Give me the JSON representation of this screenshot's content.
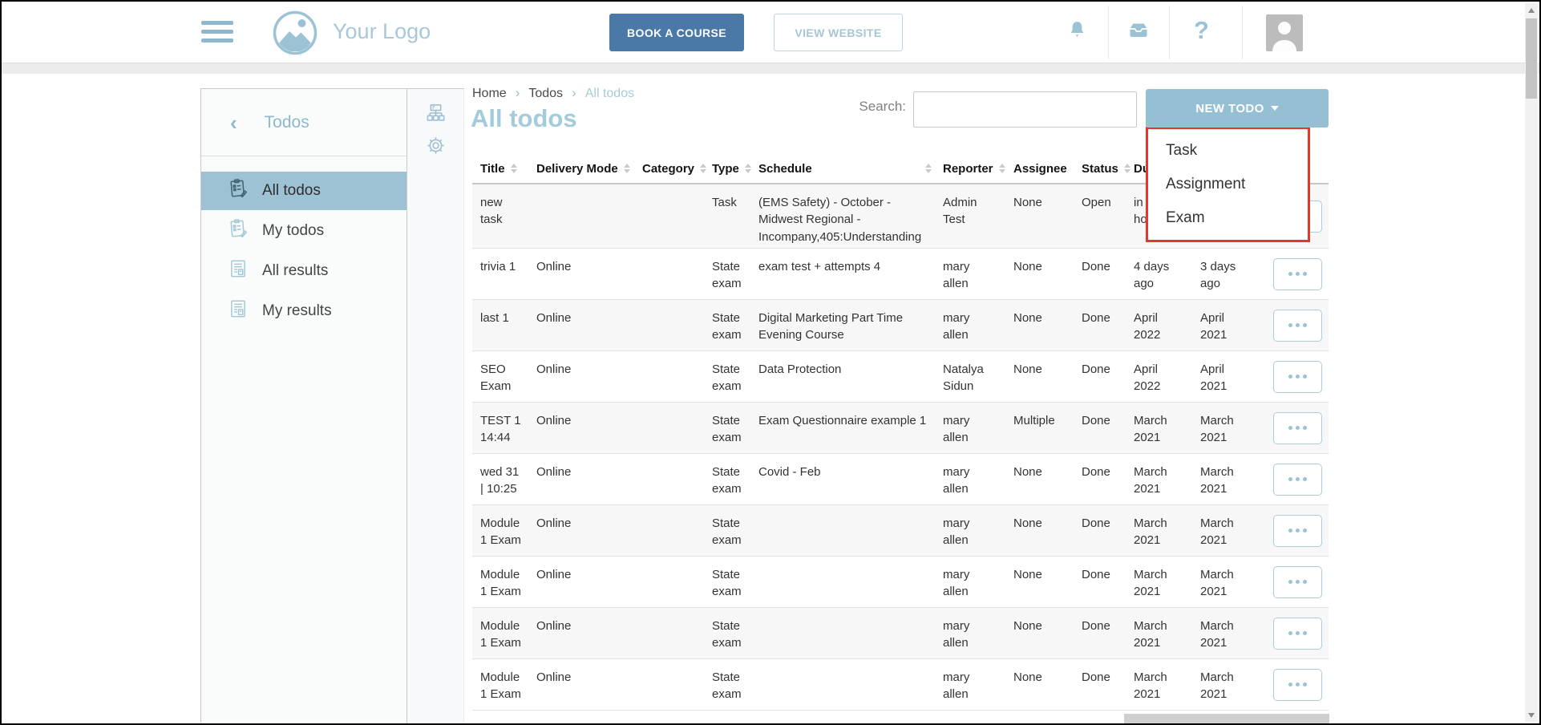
{
  "header": {
    "logo_text": "Your Logo",
    "book_course_label": "BOOK A COURSE",
    "view_website_label": "VIEW WEBSITE"
  },
  "sidebar": {
    "back_chevron": "‹",
    "title": "Todos",
    "items": [
      {
        "label": "All todos",
        "icon": "todo-list-icon",
        "selected": true
      },
      {
        "label": "My todos",
        "icon": "todo-list-icon",
        "selected": false
      },
      {
        "label": "All results",
        "icon": "results-icon",
        "selected": false
      },
      {
        "label": "My results",
        "icon": "results-icon",
        "selected": false
      }
    ]
  },
  "breadcrumb": [
    "Home",
    "Todos",
    "All todos"
  ],
  "page_title": "All todos",
  "search": {
    "label": "Search:",
    "value": ""
  },
  "new_todo": {
    "label": "NEW TODO",
    "menu": [
      "Task",
      "Assignment",
      "Exam"
    ]
  },
  "table": {
    "headers": [
      {
        "label": "Title",
        "sortable": true
      },
      {
        "label": "Delivery Mode",
        "sortable": true
      },
      {
        "label": "Category",
        "sortable": true
      },
      {
        "label": "Type",
        "sortable": true
      },
      {
        "label": "Schedule",
        "sortable": true
      },
      {
        "label": "Reporter",
        "sortable": true
      },
      {
        "label": "Assignee",
        "sortable": false
      },
      {
        "label": "Status",
        "sortable": true
      },
      {
        "label": "Due date",
        "sortable": true
      },
      {
        "label": "",
        "sortable": false
      },
      {
        "label": "",
        "sortable": false
      }
    ],
    "rows": [
      {
        "title": "new task",
        "delivery_mode": "",
        "category": "",
        "type": "Task",
        "schedule": "(EMS Safety) - October - Midwest Regional - Incompany,405:Understanding",
        "reporter": "Admin Test",
        "assignee": "None",
        "status": "Open",
        "due": "in hours",
        "date2": ""
      },
      {
        "title": "trivia 1",
        "delivery_mode": "Online",
        "category": "",
        "type": "State exam",
        "schedule": "exam test + attempts 4",
        "reporter": "mary allen",
        "assignee": "None",
        "status": "Done",
        "due": "4 days ago",
        "date2": "3 days ago"
      },
      {
        "title": "last 1",
        "delivery_mode": "Online",
        "category": "",
        "type": "State exam",
        "schedule": "Digital Marketing Part Time Evening Course",
        "reporter": "mary allen",
        "assignee": "None",
        "status": "Done",
        "due": "April 2022",
        "date2": "April 2021"
      },
      {
        "title": "SEO Exam",
        "delivery_mode": "Online",
        "category": "",
        "type": "State exam",
        "schedule": "Data Protection",
        "reporter": "Natalya Sidun",
        "assignee": "None",
        "status": "Done",
        "due": "April 2022",
        "date2": "April 2021"
      },
      {
        "title": "TEST 1 14:44",
        "delivery_mode": "Online",
        "category": "",
        "type": "State exam",
        "schedule": "Exam Questionnaire example 1",
        "reporter": "mary allen",
        "assignee": "Multiple",
        "status": "Done",
        "due": "March 2021",
        "date2": "March 2021"
      },
      {
        "title": "wed 31 | 10:25",
        "delivery_mode": "Online",
        "category": "",
        "type": "State exam",
        "schedule": "Covid - Feb",
        "reporter": "mary allen",
        "assignee": "None",
        "status": "Done",
        "due": "March 2021",
        "date2": "March 2021"
      },
      {
        "title": "Module 1 Exam",
        "delivery_mode": "Online",
        "category": "",
        "type": "State exam",
        "schedule": "",
        "reporter": "mary allen",
        "assignee": "None",
        "status": "Done",
        "due": "March 2021",
        "date2": "March 2021"
      },
      {
        "title": "Module 1 Exam",
        "delivery_mode": "Online",
        "category": "",
        "type": "State exam",
        "schedule": "",
        "reporter": "mary allen",
        "assignee": "None",
        "status": "Done",
        "due": "March 2021",
        "date2": "March 2021"
      },
      {
        "title": "Module 1 Exam",
        "delivery_mode": "Online",
        "category": "",
        "type": "State exam",
        "schedule": "",
        "reporter": "mary allen",
        "assignee": "None",
        "status": "Done",
        "due": "March 2021",
        "date2": "March 2021"
      },
      {
        "title": "Module 1 Exam",
        "delivery_mode": "Online",
        "category": "",
        "type": "State exam",
        "schedule": "",
        "reporter": "mary allen",
        "assignee": "None",
        "status": "Done",
        "due": "March 2021",
        "date2": "March 2021"
      }
    ],
    "row_action": "•••"
  },
  "colors": {
    "accent_blue": "#9cc2d3",
    "button_blue": "#4a79a8",
    "heading_blue": "#a3cbdc",
    "highlight_red": "#e8352a"
  }
}
